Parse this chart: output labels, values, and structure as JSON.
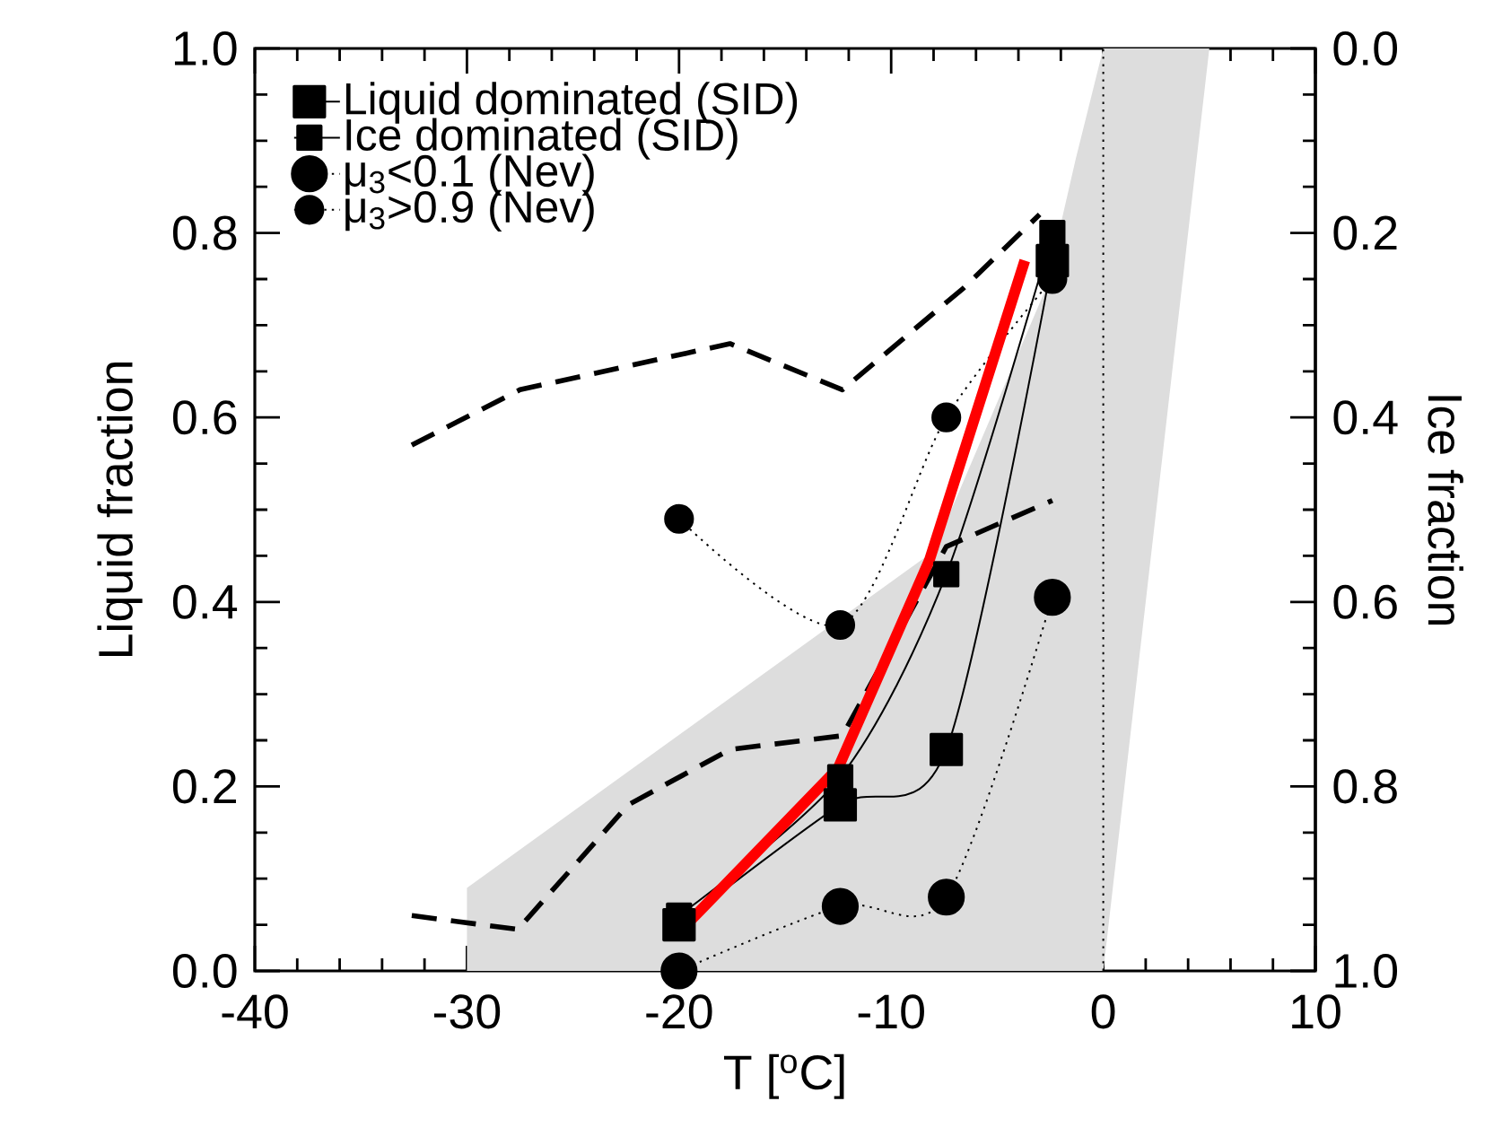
{
  "chart_data": {
    "type": "line",
    "xlabel": "T [$^{o}$C]",
    "ylabel": "Liquid fraction",
    "y2label": "Ice fraction",
    "xlim": [
      -40,
      10
    ],
    "xticks": [
      -40,
      -30,
      -20,
      -10,
      0,
      10
    ],
    "ylim": [
      0,
      1
    ],
    "yticks": [
      {
        "value": 0,
        "label": "0.0"
      },
      {
        "value": 0.2,
        "label": "0.2"
      },
      {
        "value": 0.4,
        "label": "0.4"
      },
      {
        "value": 0.6,
        "label": "0.6"
      },
      {
        "value": 0.8,
        "label": "0.8"
      },
      {
        "value": 1,
        "label": "1.0"
      }
    ],
    "y2lim": [
      1,
      0
    ],
    "y2ticks": [
      {
        "value": 0,
        "label": "0.0"
      },
      {
        "value": 0.2,
        "label": "0.2"
      },
      {
        "value": 0.4,
        "label": "0.4"
      },
      {
        "value": 0.6,
        "label": "0.6"
      },
      {
        "value": 0.8,
        "label": "0.8"
      },
      {
        "value": 1,
        "label": "1.0"
      }
    ],
    "legend": "top left",
    "grid": false,
    "ref_lines": [
      {
        "axis": "x",
        "value": 0,
        "color": "#000000",
        "line_style": "dotted"
      }
    ],
    "series": [
      {
        "type": "area",
        "color": "#dddddd",
        "x": [
          -30,
          -30,
          -8,
          -2.7,
          -1.3,
          0,
          5,
          0
        ],
        "values": [
          0,
          0.09,
          0.455,
          0.74,
          0.88,
          1.0,
          1.0,
          0
        ]
      },
      {
        "color": "#000000",
        "line_style": "dashed",
        "marker": "none",
        "x": [
          -32.6,
          -27.5,
          -17.6,
          -12.3,
          -6.6,
          -3.0
        ],
        "values": [
          0.57,
          0.63,
          0.68,
          0.63,
          0.74,
          0.82
        ]
      },
      {
        "color": "#000000",
        "line_style": "dashed",
        "marker": "none",
        "x": [
          -32.6,
          -27.6,
          -22.4,
          -17.6,
          -12.3,
          -7.4,
          -2.4
        ],
        "values": [
          0.06,
          0.045,
          0.18,
          0.24,
          0.255,
          0.46,
          0.51
        ]
      },
      {
        "name": "Liquid dominated (SID)",
        "color": "#000000",
        "line_style": "solid",
        "marker": "square",
        "x": [
          -20,
          -12.4,
          -7.4,
          -2.4
        ],
        "values": [
          0.05,
          0.18,
          0.24,
          0.77
        ]
      },
      {
        "name": "Ice dominated (SID)",
        "color": "#000000",
        "line_style": "solid",
        "marker": "square",
        "x": [
          -20,
          -12.4,
          -7.4,
          -2.4
        ],
        "values": [
          0.06,
          0.21,
          0.43,
          0.8
        ]
      },
      {
        "name": "μ$_{3}$<0.1 (Nev)",
        "color": "#000000",
        "line_style": "dotted",
        "marker": "circle",
        "x": [
          -20,
          -12.4,
          -7.4,
          -2.4
        ],
        "values": [
          0.0,
          0.07,
          0.08,
          0.405
        ]
      },
      {
        "name": "μ$_{3}$>0.9 (Nev)",
        "color": "#000000",
        "line_style": "dotted",
        "marker": "circle",
        "x": [
          -20,
          -12.4,
          -7.4,
          -2.4
        ],
        "values": [
          0.49,
          0.375,
          0.6,
          0.75
        ]
      },
      {
        "color": "#ff0000",
        "line_style": "solid",
        "marker": "none",
        "x": [
          -19.4,
          -12.5,
          -8.2,
          -3.7
        ],
        "values": [
          0.056,
          0.22,
          0.445,
          0.77
        ]
      }
    ]
  }
}
